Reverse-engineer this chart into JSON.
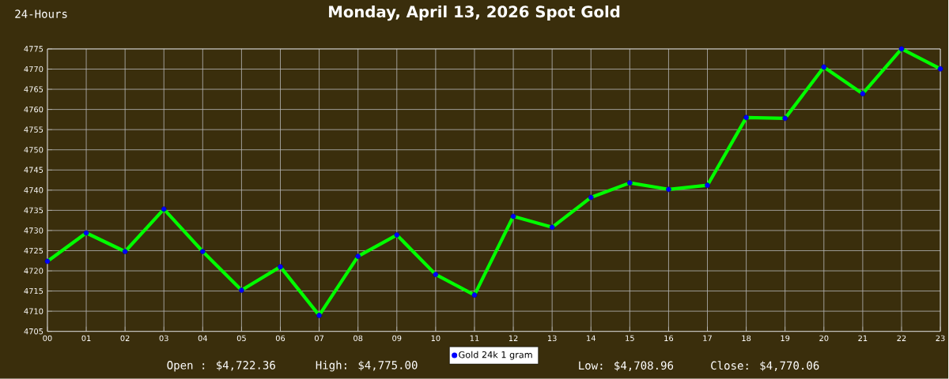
{
  "chart_data": {
    "type": "line",
    "title": "Monday, April 13, 2026 Spot Gold",
    "annotations": [
      "24-Hours",
      "Open : $4,722.36",
      "High: $4,775.00",
      "Low: $4,708.96",
      "Close: $4,770.06"
    ],
    "categories": [
      "00",
      "01",
      "02",
      "03",
      "04",
      "05",
      "06",
      "07",
      "08",
      "09",
      "10",
      "11",
      "12",
      "13",
      "14",
      "15",
      "16",
      "17",
      "18",
      "19",
      "20",
      "21",
      "22",
      "23"
    ],
    "series": [
      {
        "name": "Gold 24k 1 gram",
        "color": "#00ff00",
        "values": [
          4722.36,
          4729.4,
          4724.8,
          4735.3,
          4724.8,
          4715.2,
          4721.0,
          4708.96,
          4723.6,
          4728.9,
          4719.1,
          4714.0,
          4733.5,
          4730.8,
          4738.2,
          4741.8,
          4740.2,
          4741.2,
          4758.0,
          4757.8,
          4770.5,
          4763.9,
          4775.0,
          4770.06
        ]
      }
    ],
    "ylim": [
      4705,
      4775
    ],
    "yticks": [
      4705,
      4710,
      4715,
      4720,
      4725,
      4730,
      4735,
      4740,
      4745,
      4750,
      4755,
      4760,
      4765,
      4770,
      4775
    ],
    "grid": true,
    "legend": "bottom",
    "marker": "circle",
    "line_style": "solid"
  }
}
